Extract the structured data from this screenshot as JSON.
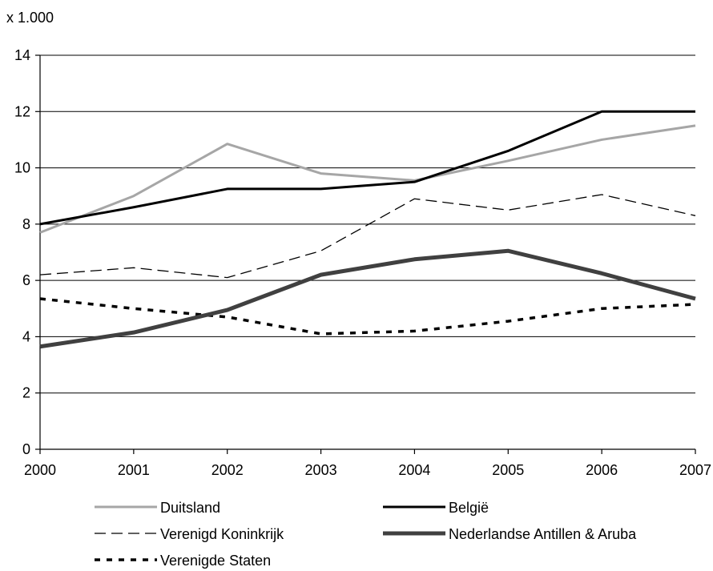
{
  "chart_data": {
    "type": "line",
    "title": "",
    "unit_label": "x 1.000",
    "xlabel": "",
    "ylabel": "",
    "x": [
      2000,
      2001,
      2002,
      2003,
      2004,
      2005,
      2006,
      2007
    ],
    "x_tick_labels": [
      "2000",
      "2001",
      "2002",
      "2003",
      "2004",
      "2005",
      "2006",
      "2007"
    ],
    "ylim": [
      0,
      14
    ],
    "y_ticks": [
      0,
      2,
      4,
      6,
      8,
      10,
      12,
      14
    ],
    "y_tick_labels": [
      "0",
      "2",
      "4",
      "6",
      "8",
      "10",
      "12",
      "14"
    ],
    "grid": "horizontal",
    "legend_position": "bottom",
    "series": [
      {
        "name": "Duitsland",
        "values": [
          7.7,
          9.0,
          10.85,
          9.8,
          9.55,
          10.25,
          11.0,
          11.5
        ],
        "color": "#a6a6a6",
        "style": "solid"
      },
      {
        "name": "België",
        "values": [
          8.0,
          8.6,
          9.25,
          9.25,
          9.5,
          10.6,
          12.0,
          12.0
        ],
        "color": "#000000",
        "style": "solid"
      },
      {
        "name": "Verenigd Koninkrijk",
        "values": [
          6.2,
          6.45,
          6.1,
          7.05,
          8.9,
          8.5,
          9.05,
          8.3
        ],
        "color": "#000000",
        "style": "dashed"
      },
      {
        "name": "Nederlandse Antillen & Aruba",
        "values": [
          3.65,
          4.15,
          4.95,
          6.2,
          6.75,
          7.05,
          6.25,
          5.35
        ],
        "color": "#404040",
        "style": "thick"
      },
      {
        "name": "Verenigde Staten",
        "values": [
          5.35,
          5.0,
          4.7,
          4.1,
          4.2,
          4.55,
          5.0,
          5.15
        ],
        "color": "#000000",
        "style": "dotted"
      }
    ]
  }
}
